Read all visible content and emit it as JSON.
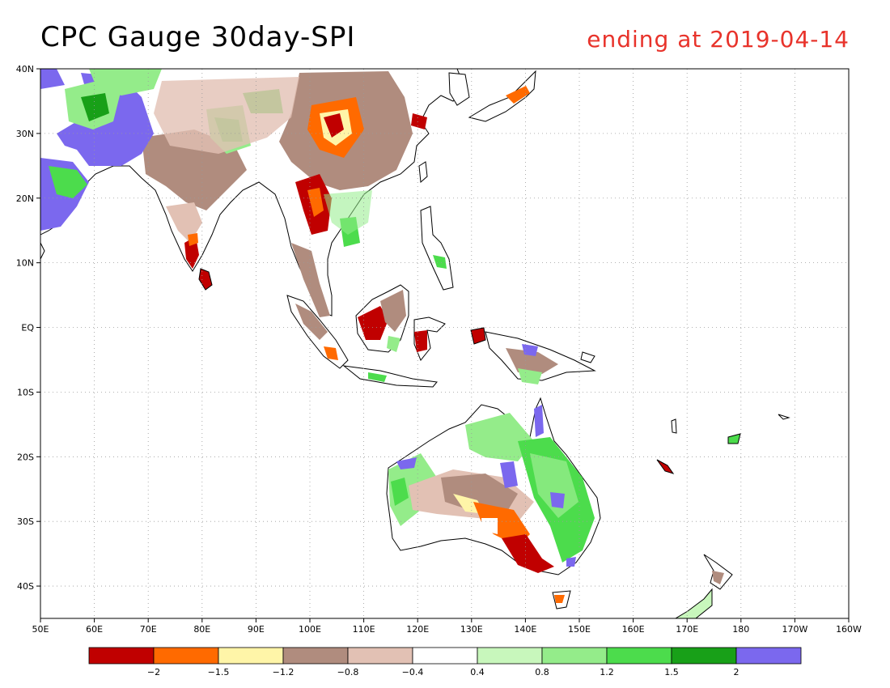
{
  "title": "CPC Gauge 30day-SPI",
  "subtitle": "ending at 2019-04-14",
  "map": {
    "lon_range": [
      50,
      200
    ],
    "lat_range": [
      -45,
      40
    ],
    "lon_ticks": [
      {
        "lon": 50,
        "label": "50E"
      },
      {
        "lon": 60,
        "label": "60E"
      },
      {
        "lon": 70,
        "label": "70E"
      },
      {
        "lon": 80,
        "label": "80E"
      },
      {
        "lon": 90,
        "label": "90E"
      },
      {
        "lon": 100,
        "label": "100E"
      },
      {
        "lon": 110,
        "label": "110E"
      },
      {
        "lon": 120,
        "label": "120E"
      },
      {
        "lon": 130,
        "label": "130E"
      },
      {
        "lon": 140,
        "label": "140E"
      },
      {
        "lon": 150,
        "label": "150E"
      },
      {
        "lon": 160,
        "label": "160E"
      },
      {
        "lon": 170,
        "label": "170E"
      },
      {
        "lon": 180,
        "label": "180"
      },
      {
        "lon": 190,
        "label": "170W"
      },
      {
        "lon": 200,
        "label": "160W"
      }
    ],
    "lat_ticks": [
      {
        "lat": 40,
        "label": "40N"
      },
      {
        "lat": 30,
        "label": "30N"
      },
      {
        "lat": 20,
        "label": "20N"
      },
      {
        "lat": 10,
        "label": "10N"
      },
      {
        "lat": 0,
        "label": "EQ"
      },
      {
        "lat": -10,
        "label": "10S"
      },
      {
        "lat": -20,
        "label": "20S"
      },
      {
        "lat": -30,
        "label": "30S"
      },
      {
        "lat": -40,
        "label": "40S"
      }
    ],
    "gridlines": "dotted"
  },
  "colors": {
    "lt_-2": "#c00000",
    "-2_-1.5": "#ff6a00",
    "-1.5_-1.2": "#fff5a8",
    "-1.2_-0.8": "#b08c7e",
    "-0.8_-0.4": "#e2c1b4",
    "-0.4_0.4": "#ffffff",
    "0.4_0.8": "#c8f7bc",
    "0.8_1.2": "#94ec8a",
    "1.2_1.5": "#4cdc4c",
    "1.5_2": "#18a018",
    "gt_2": "#7b68ee"
  },
  "legend": {
    "swatches": [
      "#c00000",
      "#ff6a00",
      "#fff5a8",
      "#b08c7e",
      "#e2c1b4",
      "#ffffff",
      "#c8f7bc",
      "#94ec8a",
      "#4cdc4c",
      "#18a018",
      "#7b68ee"
    ],
    "labels": [
      "-2",
      "-1.5",
      "-1.2",
      "-0.8",
      "-0.4",
      "0.4",
      "0.8",
      "1.2",
      "1.5",
      "2"
    ]
  }
}
